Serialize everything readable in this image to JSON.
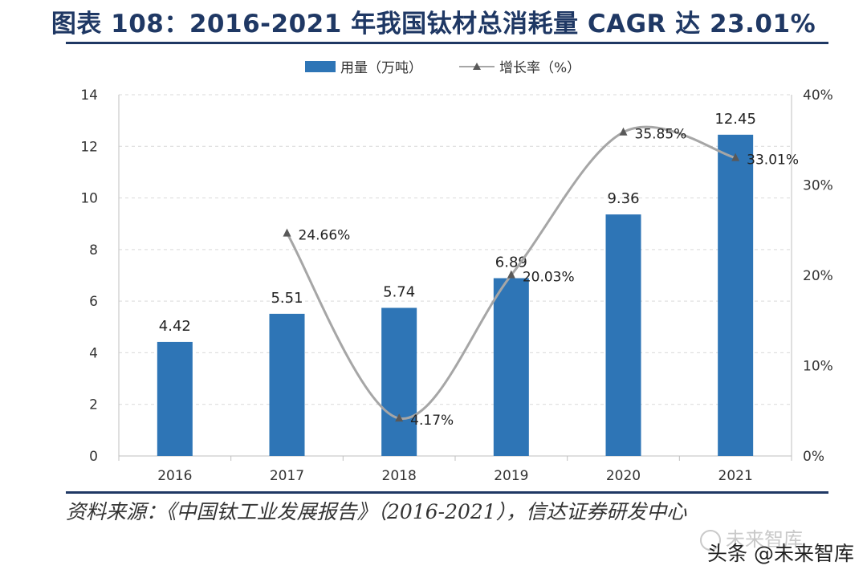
{
  "title": "图表 108：2016-2021 年我国钛材总消耗量 CAGR 达 23.01%",
  "legend": {
    "bar_label": "用量（万吨）",
    "line_label": "增长率（%）"
  },
  "colors": {
    "bar": "#2e75b6",
    "line": "#a6a6a6",
    "title": "#1f3864",
    "grid": "#d9d9d9"
  },
  "chart_data": {
    "type": "bar",
    "title": "2016-2021 年我国钛材总消耗量 CAGR 达 23.01%",
    "categories": [
      "2016",
      "2017",
      "2018",
      "2019",
      "2020",
      "2021"
    ],
    "series": [
      {
        "name": "用量（万吨）",
        "type": "bar",
        "axis": "left",
        "values": [
          4.42,
          5.51,
          5.74,
          6.89,
          9.36,
          12.45
        ],
        "labels": [
          "4.42",
          "5.51",
          "5.74",
          "6.89",
          "9.36",
          "12.45"
        ]
      },
      {
        "name": "增长率（%）",
        "type": "line",
        "axis": "right",
        "values": [
          null,
          24.66,
          4.17,
          20.03,
          35.85,
          33.01
        ],
        "labels": [
          "",
          "24.66%",
          "4.17%",
          "20.03%",
          "35.85%",
          "33.01%"
        ]
      }
    ],
    "y_left": {
      "min": 0,
      "max": 14,
      "step": 2,
      "ticks": [
        "0",
        "2",
        "4",
        "6",
        "8",
        "10",
        "12",
        "14"
      ]
    },
    "y_right": {
      "min": 0,
      "max": 40,
      "step": 10,
      "ticks": [
        "0%",
        "10%",
        "20%",
        "30%",
        "40%"
      ]
    },
    "grid": true,
    "legend_position": "top-center"
  },
  "source": "资料来源：《中国钛工业发展报告》（2016-2021），信达证券研发中心",
  "watermark": {
    "faded": "未来智库",
    "text": "头条 @未来智库"
  }
}
